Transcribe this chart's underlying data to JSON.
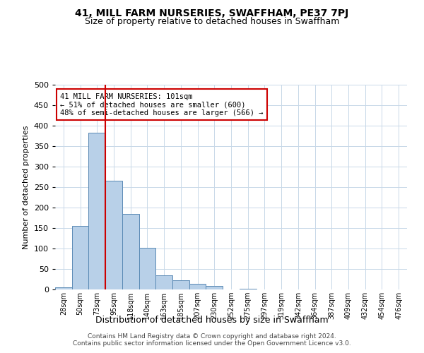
{
  "title": "41, MILL FARM NURSERIES, SWAFFHAM, PE37 7PJ",
  "subtitle": "Size of property relative to detached houses in Swaffham",
  "xlabel": "Distribution of detached houses by size in Swaffham",
  "ylabel": "Number of detached properties",
  "bin_labels": [
    "28sqm",
    "50sqm",
    "73sqm",
    "95sqm",
    "118sqm",
    "140sqm",
    "163sqm",
    "185sqm",
    "207sqm",
    "230sqm",
    "252sqm",
    "275sqm",
    "297sqm",
    "319sqm",
    "342sqm",
    "364sqm",
    "387sqm",
    "409sqm",
    "432sqm",
    "454sqm",
    "476sqm"
  ],
  "bar_heights": [
    5,
    155,
    383,
    265,
    185,
    101,
    35,
    22,
    13,
    8,
    0,
    2,
    0,
    0,
    0,
    0,
    0,
    0,
    0,
    0,
    0
  ],
  "bar_color": "#b8d0e8",
  "bar_edge_color": "#5a8ab5",
  "vline_color": "#cc0000",
  "vline_pos": 2.5,
  "annotation_text": "41 MILL FARM NURSERIES: 101sqm\n← 51% of detached houses are smaller (600)\n48% of semi-detached houses are larger (566) →",
  "annotation_box_color": "#cc0000",
  "ylim": [
    0,
    500
  ],
  "yticks": [
    0,
    50,
    100,
    150,
    200,
    250,
    300,
    350,
    400,
    450,
    500
  ],
  "footer1": "Contains HM Land Registry data © Crown copyright and database right 2024.",
  "footer2": "Contains public sector information licensed under the Open Government Licence v3.0.",
  "bg_color": "#ffffff",
  "grid_color": "#c8d8e8"
}
